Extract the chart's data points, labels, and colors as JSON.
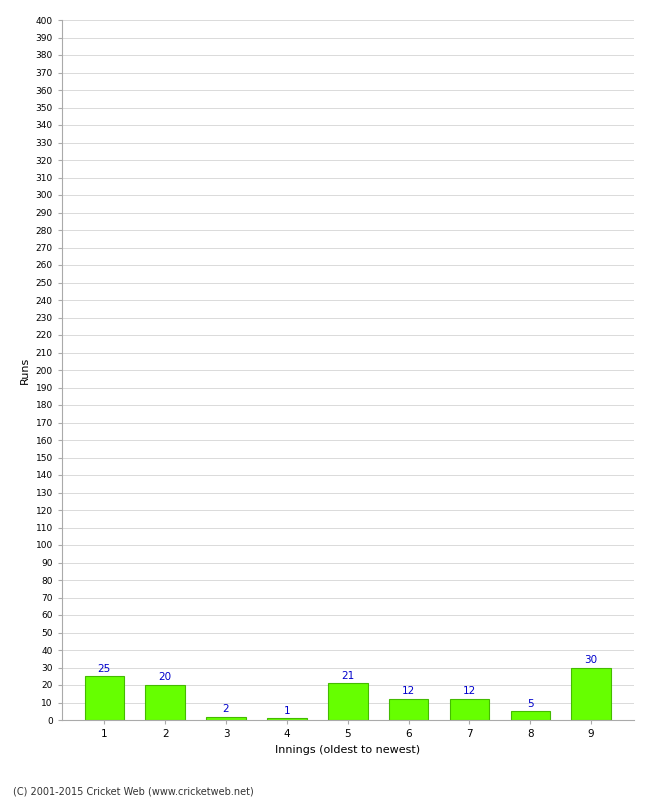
{
  "xlabel": "Innings (oldest to newest)",
  "ylabel": "Runs",
  "categories": [
    "1",
    "2",
    "3",
    "4",
    "5",
    "6",
    "7",
    "8",
    "9"
  ],
  "values": [
    25,
    20,
    2,
    1,
    21,
    12,
    12,
    5,
    30
  ],
  "bar_color": "#66ff00",
  "bar_edge_color": "#44bb00",
  "label_color": "#0000cc",
  "ylim": [
    0,
    400
  ],
  "ytick_step": 10,
  "background_color": "#ffffff",
  "grid_color": "#cccccc",
  "footer_text": "(C) 2001-2015 Cricket Web (www.cricketweb.net)"
}
